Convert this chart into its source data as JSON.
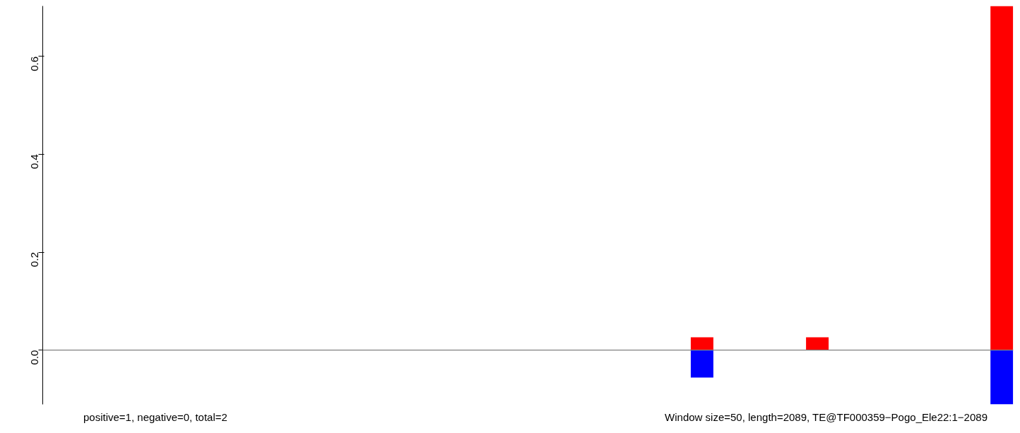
{
  "chart_data": {
    "type": "bar",
    "categories": [
      null,
      null,
      null,
      null,
      null,
      null,
      null,
      null,
      null,
      null,
      null,
      null,
      null,
      null,
      null,
      null,
      null,
      null,
      null,
      null,
      null,
      null,
      null,
      null,
      null,
      null,
      null,
      null,
      null,
      null,
      null,
      null,
      null,
      null,
      null,
      null,
      null,
      null,
      null,
      null,
      null
    ],
    "series": [
      {
        "color": "#ff0000",
        "values": [
          0,
          0,
          0,
          0,
          0,
          0,
          0,
          0,
          0,
          0,
          0,
          0,
          0,
          0,
          0,
          0,
          0,
          0,
          0,
          0,
          0,
          0,
          0,
          0,
          0,
          0,
          0,
          0.026,
          0,
          0,
          0,
          0,
          0.026,
          0,
          0,
          0,
          0,
          0,
          0,
          0,
          0.703
        ]
      },
      {
        "color": "#0000ff",
        "values": [
          0,
          0,
          0,
          0,
          0,
          0,
          0,
          0,
          0,
          0,
          0,
          0,
          0,
          0,
          0,
          0,
          0,
          0,
          0,
          0,
          0,
          0,
          0,
          0,
          0,
          0,
          0,
          -0.056,
          0,
          0,
          0,
          0,
          0,
          0,
          0,
          0,
          0,
          0,
          0,
          0,
          -0.111
        ]
      }
    ],
    "ylim": [
      -0.111,
      0.703
    ],
    "yticks": [
      {
        "value": 0,
        "label": "0.0"
      },
      0.2,
      0.4,
      0.6
    ],
    "tick_labels": "y",
    "grid": false,
    "ref_lines": [
      {
        "axis": "y",
        "value": 0,
        "color": "#808080"
      }
    ],
    "annotations": [
      "positive=1, negative=0, total=2",
      "Window size=50, length=2089, TE@TF000359−Pogo_Ele22:1−2089"
    ]
  }
}
